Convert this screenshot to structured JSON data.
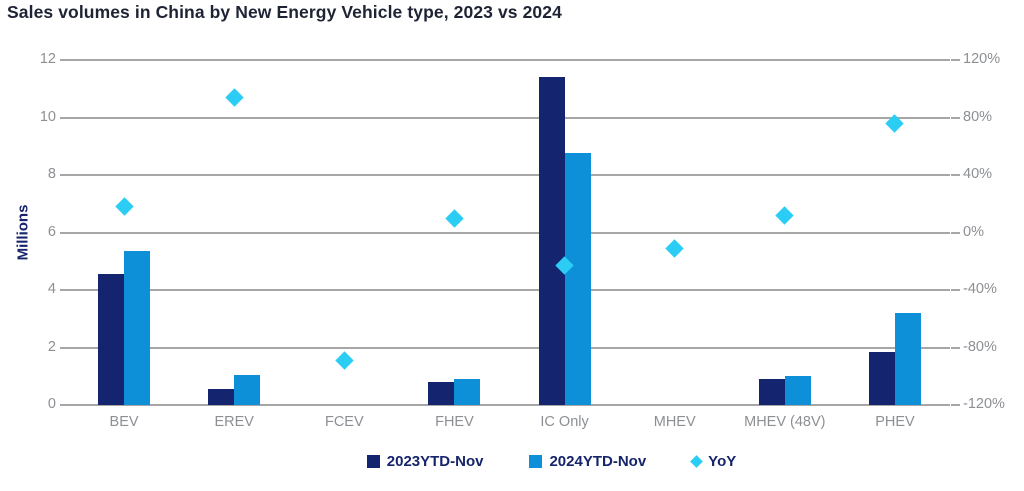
{
  "chart_data": {
    "type": "combo-bar-scatter",
    "title": "Sales volumes in China by New Energy Vehicle type, 2023 vs 2024",
    "categories": [
      "BEV",
      "EREV",
      "FCEV",
      "FHEV",
      "IC Only",
      "MHEV",
      "MHEV (48V)",
      "PHEV"
    ],
    "series": [
      {
        "name": "2023YTD-Nov",
        "type": "bar",
        "color": "#14246e",
        "axis": "left",
        "values": [
          4.55,
          0.55,
          0,
          0.8,
          11.4,
          0,
          0.9,
          1.85
        ]
      },
      {
        "name": "2024YTD-Nov",
        "type": "bar",
        "color": "#0e90d9",
        "axis": "left",
        "values": [
          5.35,
          1.05,
          0,
          0.9,
          8.75,
          0,
          1.0,
          3.2
        ]
      },
      {
        "name": "YoY",
        "type": "scatter-diamond",
        "color": "#2bcdf5",
        "axis": "right",
        "values_pct": [
          18,
          94,
          -89,
          10,
          -23,
          -11,
          12,
          76
        ]
      }
    ],
    "left_axis": {
      "label": "Millions",
      "min": 0,
      "max": 12,
      "ticks": [
        0,
        2,
        4,
        6,
        8,
        10,
        12
      ]
    },
    "right_axis": {
      "min": -120,
      "max": 120,
      "ticks": [
        "-120%",
        "-80%",
        "-40%",
        "0%",
        "40%",
        "80%",
        "120%"
      ]
    },
    "grid": true,
    "legend_position": "bottom",
    "colors": {
      "title_text": "#1f2435",
      "axis_title_text": "#15246b",
      "tick_text": "#8c8f94",
      "gridline": "#a6a6a6",
      "background": "#ffffff"
    }
  }
}
